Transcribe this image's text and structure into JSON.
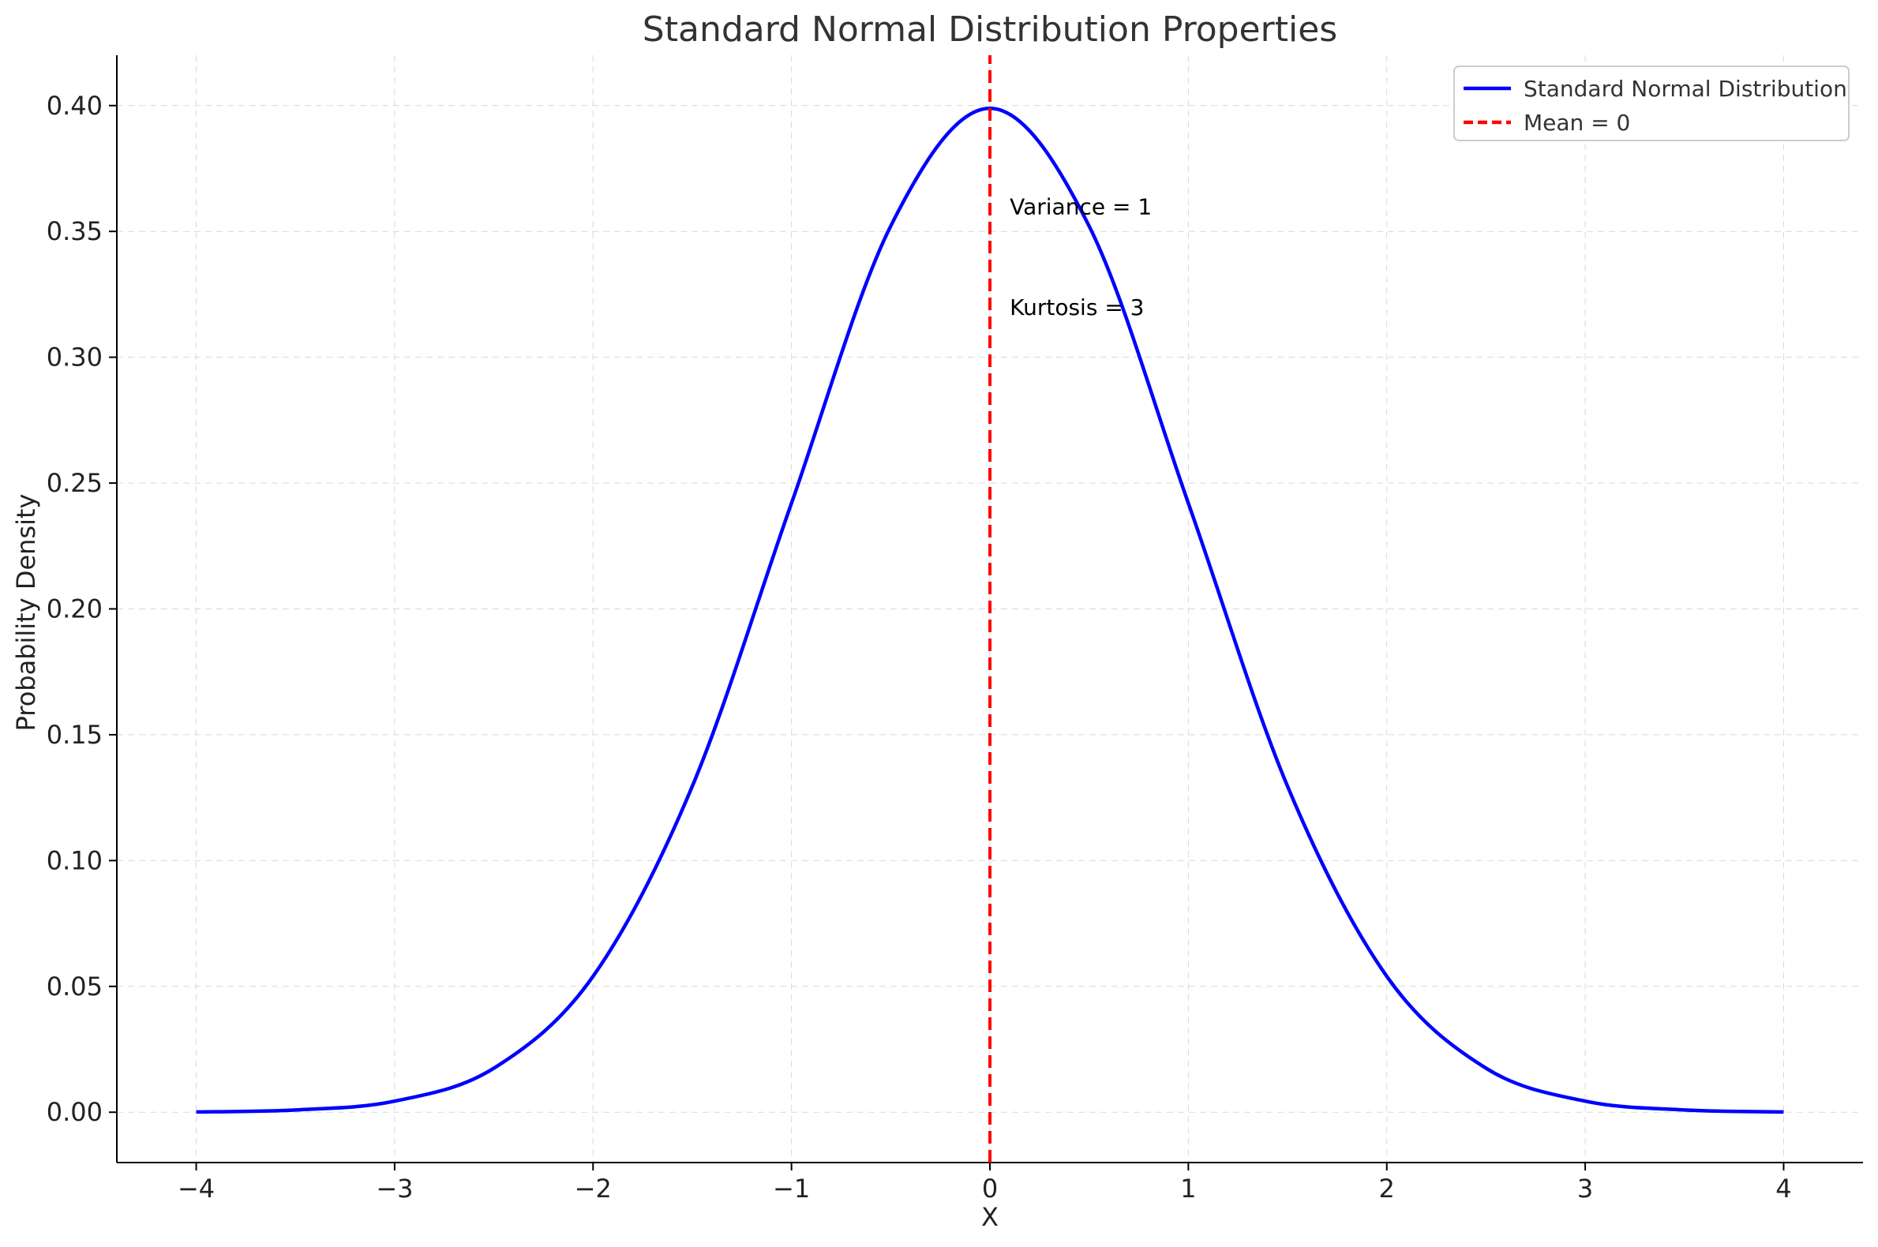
{
  "chart_data": {
    "type": "line",
    "title": "Standard Normal Distribution Properties",
    "xlabel": "X",
    "ylabel": "Probability Density",
    "xlim": [
      -4.4,
      4.4
    ],
    "ylim": [
      -0.02,
      0.42
    ],
    "x_ticks": [
      -4,
      -3,
      -2,
      -1,
      0,
      1,
      2,
      3,
      4
    ],
    "x_tick_labels": [
      "−4",
      "−3",
      "−2",
      "−1",
      "0",
      "1",
      "2",
      "3",
      "4"
    ],
    "y_ticks": [
      0.0,
      0.05,
      0.1,
      0.15,
      0.2,
      0.25,
      0.3,
      0.35,
      0.4
    ],
    "y_tick_labels": [
      "0.00",
      "0.05",
      "0.10",
      "0.15",
      "0.20",
      "0.25",
      "0.30",
      "0.35",
      "0.40"
    ],
    "grid": true,
    "legend_position": "top-right",
    "series": [
      {
        "name": "Standard Normal Distribution",
        "color": "#0000ff",
        "style": "solid",
        "x": [
          -4.0,
          -3.5,
          -3.0,
          -2.5,
          -2.0,
          -1.5,
          -1.0,
          -0.5,
          0.0,
          0.5,
          1.0,
          1.5,
          2.0,
          2.5,
          3.0,
          3.5,
          4.0
        ],
        "y": [
          0.0001,
          0.0009,
          0.0044,
          0.0175,
          0.054,
          0.1295,
          0.242,
          0.3521,
          0.3989,
          0.3521,
          0.242,
          0.1295,
          0.054,
          0.0175,
          0.0044,
          0.0009,
          0.0001
        ]
      },
      {
        "name": "Mean = 0",
        "color": "#ff0000",
        "style": "dashed",
        "x": [
          0,
          0
        ],
        "y": [
          -0.02,
          0.42
        ]
      }
    ],
    "annotations": [
      {
        "text": "Variance = 1",
        "x": 0.1,
        "y": 0.36
      },
      {
        "text": "Kurtosis = 3",
        "x": 0.1,
        "y": 0.32
      }
    ]
  }
}
